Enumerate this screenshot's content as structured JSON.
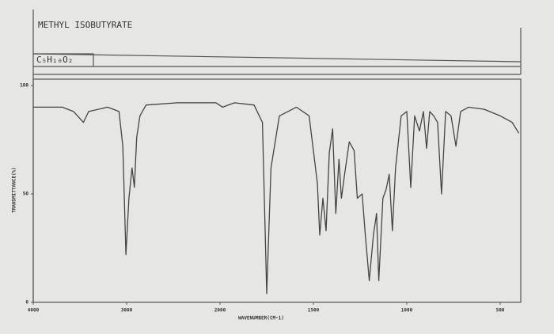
{
  "chart_data": {
    "type": "line",
    "title": "METHYL ISOBUTYRATE",
    "subtitle": "C₅H₁₀O₂",
    "x_label": "WAVENUMBER(CM-1)",
    "y_label": "TRANSMITTANCE(%)",
    "xlim": [
      4000,
      400
    ],
    "xticks": [
      4000,
      3000,
      2000,
      1500,
      1000,
      500
    ],
    "ylim": [
      0,
      100
    ],
    "yticks": [
      0,
      50,
      100
    ],
    "color": "#444444",
    "x": [
      4000,
      3691,
      3569,
      3463,
      3407,
      3203,
      3081,
      3041,
      3008,
      2975,
      2942,
      2917,
      2892,
      2858,
      2792,
      2458,
      2042,
      1986,
      1923,
      1818,
      1773,
      1750,
      1727,
      1682,
      1591,
      1523,
      1479,
      1466,
      1449,
      1432,
      1415,
      1397,
      1380,
      1363,
      1350,
      1333,
      1308,
      1282,
      1265,
      1239,
      1222,
      1201,
      1179,
      1162,
      1150,
      1128,
      1111,
      1094,
      1077,
      1060,
      1030,
      1000,
      979,
      958,
      932,
      911,
      894,
      877,
      856,
      835,
      814,
      792,
      763,
      737,
      712,
      669,
      585,
      500,
      436,
      400
    ],
    "values": [
      90,
      90,
      88,
      83,
      88,
      90,
      88,
      72,
      22,
      48,
      62,
      53,
      76,
      86,
      91,
      92,
      92,
      90,
      92,
      91,
      83,
      4,
      62,
      86,
      90,
      86,
      55,
      31,
      48,
      33,
      69,
      80,
      41,
      66,
      48,
      59,
      74,
      70,
      48,
      50,
      31,
      10,
      31,
      41,
      10,
      48,
      52,
      59,
      33,
      62,
      86,
      88,
      53,
      86,
      79,
      88,
      71,
      88,
      86,
      83,
      50,
      88,
      86,
      72,
      88,
      90,
      89,
      86,
      83,
      78
    ]
  }
}
